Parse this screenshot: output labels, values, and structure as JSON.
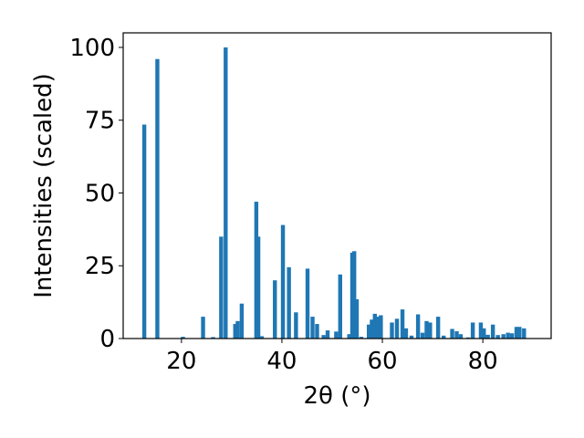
{
  "chart_data": {
    "type": "bar",
    "xlabel": "2θ (°)",
    "ylabel": "Intensities (scaled)",
    "xlim": [
      8.4,
      93.6
    ],
    "ylim": [
      0,
      105
    ],
    "xticks": [
      "20",
      "40",
      "60",
      "80"
    ],
    "yticks": [
      "0",
      "25",
      "50",
      "75",
      "100"
    ],
    "bar_color": "#1f77b4",
    "bar_width": 0.8,
    "grid": false,
    "x": [
      12.6,
      15.2,
      20.3,
      24.3,
      26.3,
      27.9,
      28.8,
      30.7,
      31.2,
      32.0,
      34.9,
      35.3,
      36.0,
      38.6,
      40.2,
      41.4,
      42.8,
      45.1,
      46.1,
      47.0,
      48.3,
      49.1,
      50.8,
      51.6,
      53.4,
      54.0,
      54.4,
      54.9,
      55.8,
      57.3,
      57.9,
      58.5,
      59.1,
      59.7,
      61.9,
      62.9,
      64.0,
      64.7,
      65.8,
      67.1,
      68.0,
      68.8,
      69.5,
      71.1,
      72.2,
      73.9,
      74.8,
      75.6,
      77.1,
      78.0,
      79.6,
      80.2,
      81.0,
      82.0,
      83.0,
      84.1,
      85.0,
      85.8,
      86.7,
      87.3,
      88.2
    ],
    "values": [
      73.5,
      96.0,
      0.6,
      7.5,
      0.5,
      35.0,
      100.0,
      5.0,
      6.0,
      12.0,
      47.0,
      35.0,
      0.8,
      20.0,
      39.0,
      24.5,
      9.0,
      24.0,
      7.5,
      5.0,
      1.2,
      2.8,
      2.4,
      22.0,
      1.5,
      29.5,
      30.0,
      13.5,
      0.6,
      4.8,
      6.5,
      8.5,
      7.5,
      8.0,
      5.5,
      6.8,
      10.0,
      3.5,
      1.0,
      8.3,
      2.0,
      6.0,
      5.5,
      7.5,
      1.0,
      3.3,
      2.5,
      1.5,
      0.4,
      5.5,
      5.5,
      3.5,
      1.3,
      4.8,
      1.2,
      1.5,
      2.0,
      1.8,
      4.0,
      4.0,
      3.5
    ]
  }
}
